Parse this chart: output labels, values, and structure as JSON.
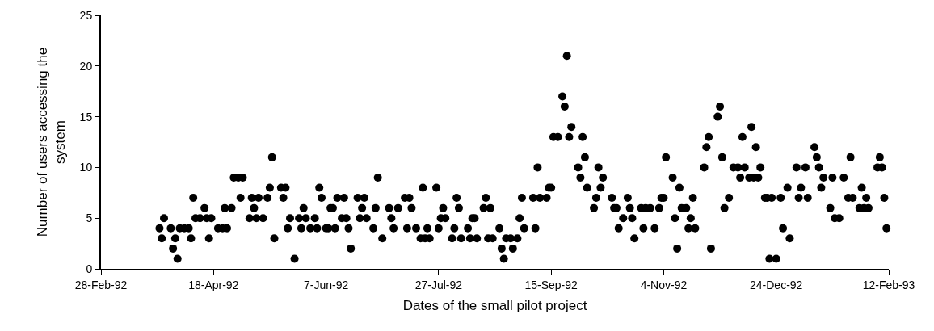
{
  "chart_data": {
    "type": "scatter",
    "xlabel": "Dates of the small pilot project",
    "ylabel": "Number of users accessing the\nsystem",
    "marker": "circle",
    "grid": false,
    "xlim": [
      "1992-02-28",
      "1993-02-12"
    ],
    "xticks": [
      {
        "value": "1992-02-28",
        "label": "28-Feb-92"
      },
      {
        "value": "1992-04-18",
        "label": "18-Apr-92"
      },
      {
        "value": "1992-06-07",
        "label": "7-Jun-92"
      },
      {
        "value": "1992-07-27",
        "label": "27-Jul-92"
      },
      {
        "value": "1992-09-15",
        "label": "15-Sep-92"
      },
      {
        "value": "1992-11-04",
        "label": "4-Nov-92"
      },
      {
        "value": "1992-12-24",
        "label": "24-Dec-92"
      },
      {
        "value": "1993-02-12",
        "label": "12-Feb-93"
      }
    ],
    "ylim": [
      0,
      25
    ],
    "yticks": [
      0,
      5,
      10,
      15,
      20,
      25
    ],
    "series": [
      {
        "color": "#000000",
        "x": [
          "1992-03-25",
          "1992-03-26",
          "1992-03-27",
          "1992-03-30",
          "1992-03-31",
          "1992-04-01",
          "1992-04-02",
          "1992-04-03",
          "1992-04-05",
          "1992-04-07",
          "1992-04-08",
          "1992-04-09",
          "1992-04-10",
          "1992-04-12",
          "1992-04-14",
          "1992-04-15",
          "1992-04-16",
          "1992-04-17",
          "1992-04-20",
          "1992-04-22",
          "1992-04-23",
          "1992-04-24",
          "1992-04-26",
          "1992-04-27",
          "1992-04-29",
          "1992-04-30",
          "1992-05-01",
          "1992-05-04",
          "1992-05-05",
          "1992-05-06",
          "1992-05-07",
          "1992-05-08",
          "1992-05-10",
          "1992-05-12",
          "1992-05-13",
          "1992-05-14",
          "1992-05-15",
          "1992-05-18",
          "1992-05-19",
          "1992-05-20",
          "1992-05-21",
          "1992-05-22",
          "1992-05-24",
          "1992-05-26",
          "1992-05-27",
          "1992-05-28",
          "1992-05-29",
          "1992-05-31",
          "1992-06-02",
          "1992-06-03",
          "1992-06-04",
          "1992-06-05",
          "1992-06-07",
          "1992-06-08",
          "1992-06-09",
          "1992-06-10",
          "1992-06-11",
          "1992-06-12",
          "1992-06-14",
          "1992-06-15",
          "1992-06-16",
          "1992-06-17",
          "1992-06-18",
          "1992-06-21",
          "1992-06-22",
          "1992-06-23",
          "1992-06-24",
          "1992-06-25",
          "1992-06-28",
          "1992-06-29",
          "1992-06-30",
          "1992-07-02",
          "1992-07-05",
          "1992-07-06",
          "1992-07-07",
          "1992-07-09",
          "1992-07-12",
          "1992-07-13",
          "1992-07-14",
          "1992-07-15",
          "1992-07-17",
          "1992-07-19",
          "1992-07-20",
          "1992-07-21",
          "1992-07-22",
          "1992-07-23",
          "1992-07-26",
          "1992-07-27",
          "1992-07-28",
          "1992-07-29",
          "1992-07-30",
          "1992-08-02",
          "1992-08-03",
          "1992-08-04",
          "1992-08-05",
          "1992-08-06",
          "1992-08-09",
          "1992-08-10",
          "1992-08-11",
          "1992-08-12",
          "1992-08-13",
          "1992-08-16",
          "1992-08-17",
          "1992-08-18",
          "1992-08-19",
          "1992-08-20",
          "1992-08-23",
          "1992-08-24",
          "1992-08-25",
          "1992-08-26",
          "1992-08-28",
          "1992-08-29",
          "1992-08-31",
          "1992-09-01",
          "1992-09-02",
          "1992-09-03",
          "1992-09-07",
          "1992-09-08",
          "1992-09-09",
          "1992-09-10",
          "1992-09-13",
          "1992-09-14",
          "1992-09-15",
          "1992-09-16",
          "1992-09-18",
          "1992-09-20",
          "1992-09-21",
          "1992-09-22",
          "1992-09-23",
          "1992-09-24",
          "1992-09-27",
          "1992-09-28",
          "1992-09-29",
          "1992-09-30",
          "1992-10-01",
          "1992-10-04",
          "1992-10-05",
          "1992-10-06",
          "1992-10-07",
          "1992-10-08",
          "1992-10-12",
          "1992-10-13",
          "1992-10-14",
          "1992-10-15",
          "1992-10-17",
          "1992-10-19",
          "1992-10-20",
          "1992-10-21",
          "1992-10-22",
          "1992-10-25",
          "1992-10-26",
          "1992-10-27",
          "1992-10-29",
          "1992-10-31",
          "1992-11-02",
          "1992-11-03",
          "1992-11-04",
          "1992-11-05",
          "1992-11-08",
          "1992-11-09",
          "1992-11-10",
          "1992-11-11",
          "1992-11-12",
          "1992-11-14",
          "1992-11-15",
          "1992-11-16",
          "1992-11-17",
          "1992-11-18",
          "1992-11-22",
          "1992-11-23",
          "1992-11-24",
          "1992-11-25",
          "1992-11-28",
          "1992-11-29",
          "1992-11-30",
          "1992-12-01",
          "1992-12-03",
          "1992-12-05",
          "1992-12-07",
          "1992-12-08",
          "1992-12-09",
          "1992-12-10",
          "1992-12-12",
          "1992-12-13",
          "1992-12-14",
          "1992-12-15",
          "1992-12-16",
          "1992-12-17",
          "1992-12-19",
          "1992-12-20",
          "1992-12-21",
          "1992-12-22",
          "1992-12-24",
          "1992-12-26",
          "1992-12-27",
          "1992-12-29",
          "1992-12-30",
          "1993-01-02",
          "1993-01-03",
          "1993-01-04",
          "1993-01-06",
          "1993-01-07",
          "1993-01-10",
          "1993-01-11",
          "1993-01-12",
          "1993-01-13",
          "1993-01-14",
          "1993-01-17",
          "1993-01-18",
          "1993-01-19",
          "1993-01-21",
          "1993-01-23",
          "1993-01-25",
          "1993-01-26",
          "1993-01-27",
          "1993-01-30",
          "1993-01-31",
          "1993-02-01",
          "1993-02-02",
          "1993-02-03",
          "1993-02-07",
          "1993-02-08",
          "1993-02-09",
          "1993-02-10",
          "1993-02-11"
        ],
        "values": [
          4,
          3,
          5,
          4,
          2,
          3,
          1,
          4,
          4,
          4,
          3,
          7,
          5,
          5,
          6,
          5,
          3,
          5,
          4,
          4,
          6,
          4,
          6,
          9,
          9,
          7,
          9,
          5,
          7,
          6,
          5,
          7,
          5,
          7,
          8,
          11,
          3,
          8,
          7,
          8,
          4,
          5,
          1,
          5,
          4,
          6,
          5,
          4,
          5,
          4,
          8,
          7,
          4,
          4,
          6,
          6,
          4,
          7,
          5,
          7,
          5,
          4,
          2,
          7,
          5,
          6,
          7,
          5,
          4,
          6,
          9,
          3,
          6,
          5,
          4,
          6,
          7,
          4,
          7,
          6,
          4,
          3,
          8,
          3,
          4,
          3,
          8,
          4,
          5,
          6,
          5,
          3,
          4,
          7,
          6,
          3,
          4,
          3,
          5,
          5,
          3,
          6,
          7,
          3,
          6,
          3,
          4,
          2,
          1,
          3,
          3,
          2,
          3,
          5,
          7,
          4,
          7,
          4,
          10,
          7,
          7,
          8,
          8,
          13,
          13,
          17,
          16,
          21,
          13,
          14,
          10,
          9,
          13,
          11,
          8,
          6,
          7,
          10,
          8,
          9,
          7,
          6,
          6,
          4,
          5,
          7,
          6,
          5,
          3,
          6,
          4,
          6,
          6,
          4,
          6,
          7,
          7,
          11,
          9,
          5,
          2,
          8,
          6,
          6,
          4,
          5,
          7,
          4,
          10,
          12,
          13,
          2,
          15,
          16,
          11,
          6,
          7,
          10,
          10,
          9,
          13,
          10,
          9,
          14,
          9,
          12,
          9,
          10,
          7,
          7,
          1,
          7,
          1,
          7,
          4,
          8,
          3,
          10,
          7,
          8,
          10,
          7,
          12,
          11,
          10,
          8,
          9,
          6,
          9,
          5,
          5,
          9,
          7,
          11,
          7,
          6,
          8,
          6,
          7,
          6,
          10,
          11,
          10,
          7,
          4
        ]
      }
    ]
  }
}
